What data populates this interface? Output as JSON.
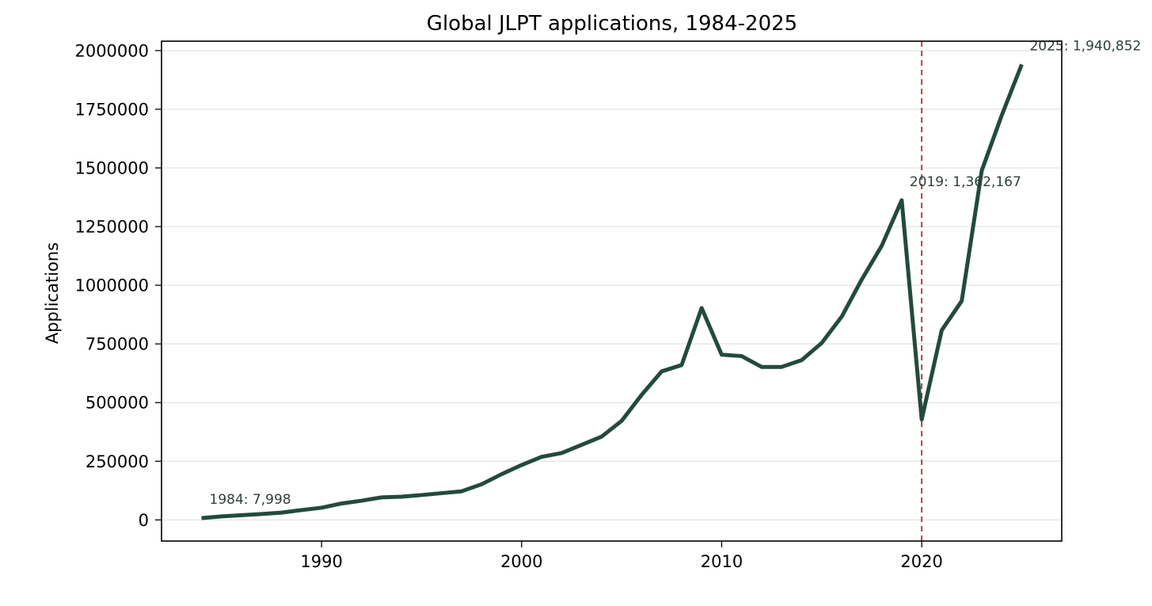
{
  "chart_data": {
    "type": "line",
    "title": "Global JLPT applications, 1984-2025",
    "xlabel": "",
    "ylabel": "Applications",
    "xlim": [
      1982,
      2027
    ],
    "ylim": [
      -90000,
      2040000
    ],
    "x_ticks": [
      1990,
      2000,
      2010,
      2020
    ],
    "y_ticks": [
      0,
      250000,
      500000,
      750000,
      1000000,
      1250000,
      1500000,
      1750000,
      2000000
    ],
    "grid": "horizontal",
    "legend": "none",
    "series": [
      {
        "color": "#234a3d",
        "points": [
          [
            1984,
            7998
          ],
          [
            1985,
            15000
          ],
          [
            1986,
            20000
          ],
          [
            1987,
            25000
          ],
          [
            1988,
            31000
          ],
          [
            1989,
            42000
          ],
          [
            1990,
            52000
          ],
          [
            1991,
            70000
          ],
          [
            1992,
            82000
          ],
          [
            1993,
            96000
          ],
          [
            1994,
            99000
          ],
          [
            1995,
            106000
          ],
          [
            1996,
            114000
          ],
          [
            1997,
            122000
          ],
          [
            1998,
            152000
          ],
          [
            1999,
            195000
          ],
          [
            2000,
            234000
          ],
          [
            2001,
            269000
          ],
          [
            2002,
            285000
          ],
          [
            2003,
            320000
          ],
          [
            2004,
            355000
          ],
          [
            2005,
            422000
          ],
          [
            2006,
            533000
          ],
          [
            2007,
            633000
          ],
          [
            2008,
            660000
          ],
          [
            2009,
            903000
          ],
          [
            2010,
            704000
          ],
          [
            2011,
            698000
          ],
          [
            2012,
            652000
          ],
          [
            2013,
            652000
          ],
          [
            2014,
            681000
          ],
          [
            2015,
            754000
          ],
          [
            2016,
            866000
          ],
          [
            2017,
            1024000
          ],
          [
            2018,
            1168000
          ],
          [
            2019,
            1362167
          ],
          [
            2020,
            428000
          ],
          [
            2021,
            808000
          ],
          [
            2022,
            933000
          ],
          [
            2023,
            1488000
          ],
          [
            2024,
            1724000
          ],
          [
            2025,
            1940852
          ]
        ]
      }
    ],
    "vline": {
      "x": 2020,
      "color": "#a64b3c",
      "style": "dashed"
    },
    "annotations": [
      {
        "x": 1984,
        "y": 7998,
        "text": "1984: 7,998"
      },
      {
        "x": 2019,
        "y": 1362167,
        "text": "2019: 1,362,167"
      },
      {
        "x": 2025,
        "y": 1940852,
        "text": "2025: 1,940,852"
      }
    ],
    "colors": {
      "line": "#234a3d",
      "vline": "#a64b3c",
      "annotation": "#2f3f39",
      "grid": "#e3e3e3"
    }
  }
}
